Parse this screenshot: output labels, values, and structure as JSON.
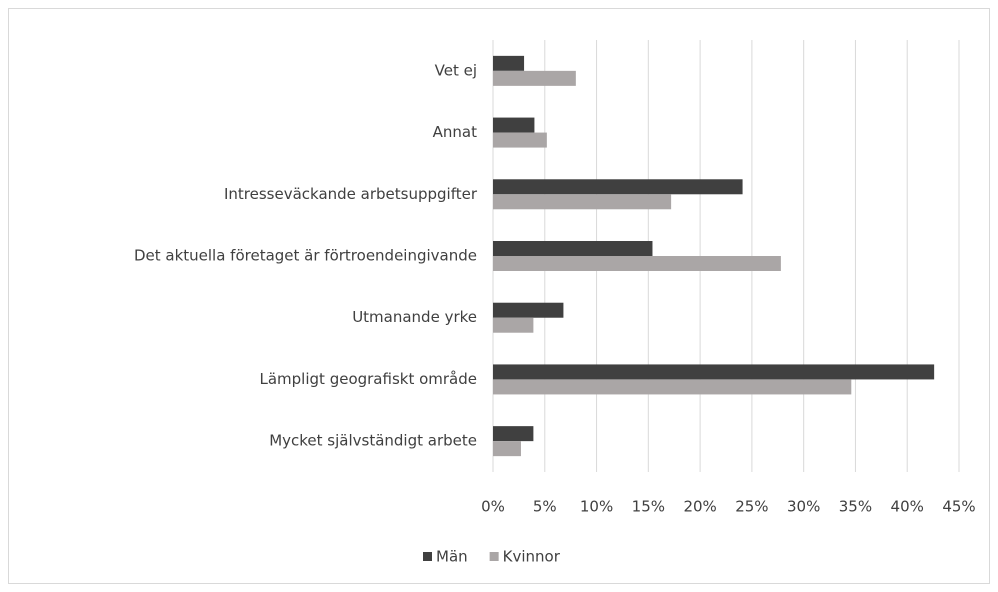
{
  "chart_data": {
    "type": "hbar",
    "categories": [
      "Vet ej",
      "Annat",
      "Intresseväckande arbetsuppgifter",
      "Det aktuella företaget är förtroendeingivande",
      "Utmanande yrke",
      "Lämpligt geografiskt område",
      "Mycket självständigt arbete"
    ],
    "series": [
      {
        "name": "Män",
        "color": "#404040",
        "values": [
          3,
          4,
          24.1,
          15.4,
          6.8,
          42.6,
          3.9
        ]
      },
      {
        "name": "Kvinnor",
        "color": "#aaa6a6",
        "values": [
          8,
          5.2,
          17.2,
          27.8,
          3.9,
          34.6,
          2.7
        ]
      }
    ],
    "xlim": [
      0,
      45
    ],
    "xticks": [
      {
        "value": 0,
        "label": "0%"
      },
      {
        "value": 5,
        "label": "5%"
      },
      {
        "value": 10,
        "label": "10%"
      },
      {
        "value": 15,
        "label": "15%"
      },
      {
        "value": 20,
        "label": "20%"
      },
      {
        "value": 25,
        "label": "25%"
      },
      {
        "value": 30,
        "label": "30%"
      },
      {
        "value": 35,
        "label": "35%"
      },
      {
        "value": 40,
        "label": "40%"
      },
      {
        "value": 45,
        "label": "45%"
      }
    ],
    "grid": true,
    "legend": "bottom"
  }
}
